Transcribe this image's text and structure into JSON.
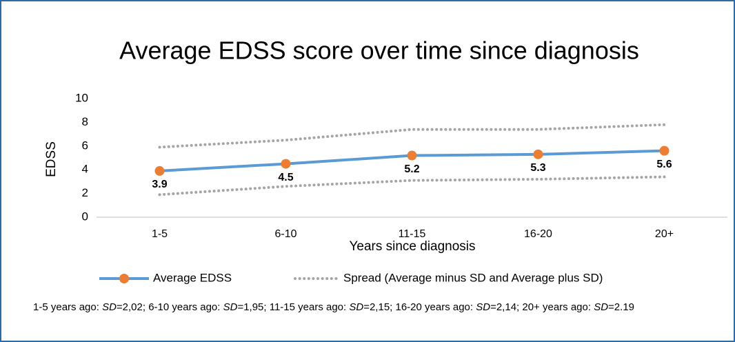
{
  "chart_data": {
    "type": "line",
    "title": "Average  EDSS score over time since diagnosis",
    "x_label": "Years since diagnosis",
    "y_label": "EDSS",
    "categories": [
      "1-5",
      "6-10",
      "11-15",
      "16-20",
      "20+"
    ],
    "series": [
      {
        "name": "Average EDSS",
        "color": "#5b9bd5",
        "marker_color": "#ed7d31",
        "values": [
          3.9,
          4.5,
          5.2,
          5.3,
          5.6
        ]
      },
      {
        "name": "Spread (Average minus SD and Average plus SD)",
        "color": "#a5a5a5",
        "lower": [
          1.9,
          2.6,
          3.1,
          3.2,
          3.4
        ],
        "upper": [
          5.9,
          6.5,
          7.4,
          7.4,
          7.8
        ]
      }
    ],
    "ylim": [
      0,
      10
    ],
    "yticks": [
      0,
      2,
      4,
      6,
      8,
      10
    ],
    "grid": false,
    "legend": "bottom",
    "footnote": [
      "1-5 years ago: ",
      "SD",
      "=2,02; 6-10 years ago: ",
      "SD",
      "=1,95; 11-15 years ago: ",
      "SD",
      "=2,15; 16-20 years ago: ",
      "SD",
      "=2,14; 20+ years ago: ",
      "SD",
      "=2.19"
    ]
  }
}
